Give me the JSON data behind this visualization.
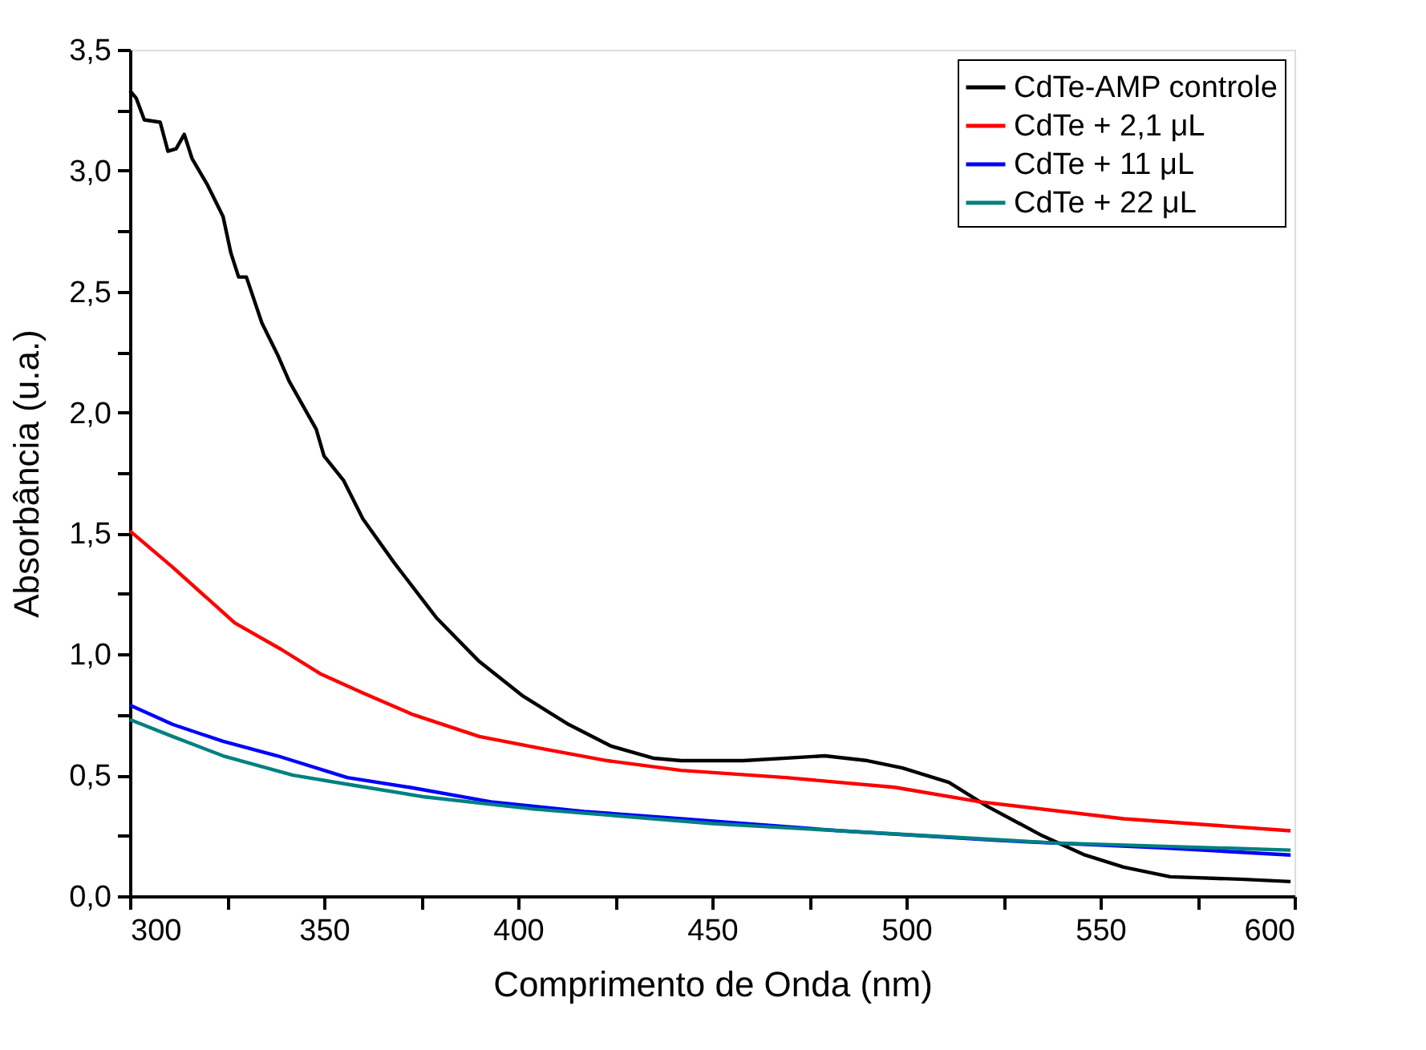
{
  "chart_data": {
    "type": "line",
    "xlabel": "Comprimento de Onda (nm)",
    "ylabel": "Absorbância (u.a.)",
    "xlim": [
      300,
      600
    ],
    "ylim": [
      0,
      3.5
    ],
    "xticks": [
      300,
      {
        "value": 325,
        "label": null
      },
      350,
      {
        "value": 375,
        "label": null
      },
      400,
      {
        "value": 425,
        "label": null
      },
      450,
      {
        "value": 475,
        "label": null
      },
      500,
      {
        "value": 525,
        "label": null
      },
      550,
      {
        "value": 575,
        "label": null
      },
      600
    ],
    "yticks": [
      {
        "value": 0,
        "label": "0,0"
      },
      {
        "value": 0.25,
        "label": null
      },
      {
        "value": 0.5,
        "label": "0,5"
      },
      {
        "value": 0.75,
        "label": null
      },
      {
        "value": 1.0,
        "label": "1,0"
      },
      {
        "value": 1.25,
        "label": null
      },
      {
        "value": 1.5,
        "label": "1,5"
      },
      {
        "value": 1.75,
        "label": null
      },
      {
        "value": 2.0,
        "label": "2,0"
      },
      {
        "value": 2.25,
        "label": null
      },
      {
        "value": 2.5,
        "label": "2,5"
      },
      {
        "value": 2.75,
        "label": null
      },
      {
        "value": 3.0,
        "label": "3,0"
      },
      {
        "value": 3.25,
        "label": null
      },
      {
        "value": 3.5,
        "label": "3,5"
      }
    ],
    "grid": false,
    "legend": "top right",
    "marker": "none",
    "line_style": "solid",
    "series": [
      {
        "name": "CdTe-AMP controle",
        "color": "#000000",
        "x": [
          300,
          301.6,
          303.7,
          307.8,
          309.8,
          311.9,
          314,
          316,
          320,
          324,
          326,
          328,
          330,
          334,
          338,
          341,
          348,
          350,
          355,
          360,
          368,
          379,
          390,
          401,
          413,
          424,
          435,
          442,
          450,
          458,
          479,
          490,
          499,
          511,
          521,
          535,
          546,
          556,
          568,
          586,
          599
        ],
        "values": [
          3.33,
          3.3,
          3.21,
          3.2,
          3.08,
          3.09,
          3.15,
          3.05,
          2.94,
          2.81,
          2.66,
          2.56,
          2.56,
          2.37,
          2.24,
          2.13,
          1.93,
          1.82,
          1.72,
          1.56,
          1.38,
          1.15,
          0.97,
          0.83,
          0.71,
          0.62,
          0.57,
          0.56,
          0.56,
          0.56,
          0.58,
          0.56,
          0.53,
          0.47,
          0.37,
          0.25,
          0.17,
          0.12,
          0.08,
          0.07,
          0.06
        ]
      },
      {
        "name": "CdTe + 2,1 μL",
        "color": "#ff0000",
        "x": [
          300,
          311,
          327,
          339,
          349,
          360,
          373,
          390,
          406,
          423,
          442,
          469,
          497,
          519,
          556,
          599
        ],
        "values": [
          1.51,
          1.36,
          1.13,
          1.02,
          0.92,
          0.84,
          0.75,
          0.66,
          0.61,
          0.56,
          0.52,
          0.49,
          0.45,
          0.39,
          0.32,
          0.27
        ]
      },
      {
        "name": "CdTe + 11 μL",
        "color": "#0000ff",
        "x": [
          300,
          311,
          324,
          338,
          356,
          372,
          393,
          417,
          442,
          483,
          524,
          565,
          599
        ],
        "values": [
          0.79,
          0.71,
          0.64,
          0.58,
          0.49,
          0.45,
          0.39,
          0.35,
          0.32,
          0.27,
          0.23,
          0.2,
          0.17
        ]
      },
      {
        "name": "CdTe + 22 μL",
        "color": "#008080",
        "x": [
          300,
          311,
          324,
          342,
          357,
          376,
          404,
          450,
          483,
          538,
          599
        ],
        "values": [
          0.73,
          0.66,
          0.58,
          0.5,
          0.46,
          0.41,
          0.36,
          0.3,
          0.27,
          0.22,
          0.19
        ]
      }
    ]
  }
}
